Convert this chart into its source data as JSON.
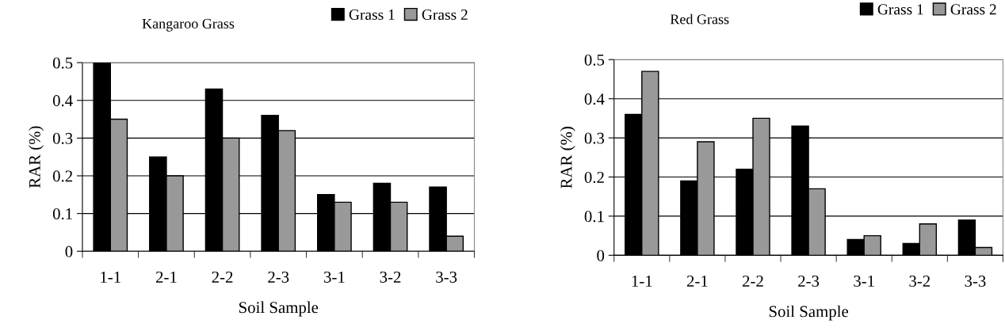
{
  "chart_data": [
    {
      "type": "bar",
      "title": "Kangaroo Grass",
      "xlabel": "Soil Sample",
      "ylabel": "RAR (%)",
      "categories": [
        "1-1",
        "2-1",
        "2-2",
        "2-3",
        "3-1",
        "3-2",
        "3-3"
      ],
      "series": [
        {
          "name": "Grass 1",
          "color": "#000000",
          "values": [
            0.5,
            0.25,
            0.43,
            0.36,
            0.15,
            0.18,
            0.17
          ]
        },
        {
          "name": "Grass 2",
          "color": "#999999",
          "values": [
            0.35,
            0.2,
            0.3,
            0.32,
            0.13,
            0.13,
            0.04
          ]
        }
      ],
      "ylim": [
        0,
        0.5
      ],
      "yticks": [
        {
          "value": 0,
          "label": "0"
        },
        0.1,
        0.2,
        0.3,
        0.4,
        0.5
      ],
      "grid": "y",
      "legend": "top right"
    },
    {
      "type": "bar",
      "title": "Red Grass",
      "xlabel": "Soil Sample",
      "ylabel": "RAR (%)",
      "categories": [
        "1-1",
        "2-1",
        "2-2",
        "2-3",
        "3-1",
        "3-2",
        "3-3"
      ],
      "series": [
        {
          "name": "Grass 1",
          "color": "#000000",
          "values": [
            0.36,
            0.19,
            0.22,
            0.33,
            0.04,
            0.03,
            0.09
          ]
        },
        {
          "name": "Grass 2",
          "color": "#999999",
          "values": [
            0.47,
            0.29,
            0.35,
            0.17,
            0.05,
            0.08,
            0.02
          ]
        }
      ],
      "ylim": [
        0,
        0.5
      ],
      "yticks": [
        {
          "value": 0,
          "label": "0"
        },
        0.1,
        0.2,
        0.3,
        0.4,
        0.5
      ],
      "grid": "y",
      "legend": "top right"
    }
  ]
}
